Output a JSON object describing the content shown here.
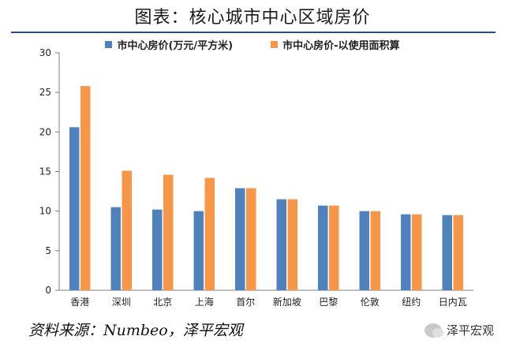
{
  "title": "图表：核心城市中心区域房价",
  "source": "资料来源：Numbeo，泽平宏观",
  "watermark": "泽平宏观",
  "colors": {
    "series1": "#4f81bd",
    "series2": "#f79646",
    "title_rule": "#2b4a7e",
    "axis": "#7f7f7f"
  },
  "chart_data": {
    "type": "bar",
    "categories": [
      "香港",
      "深圳",
      "北京",
      "上海",
      "首尔",
      "新加坡",
      "巴黎",
      "伦敦",
      "纽约",
      "日内瓦"
    ],
    "series": [
      {
        "name": "市中心房价(万元/平方米)",
        "values": [
          20.6,
          10.5,
          10.2,
          10.0,
          12.9,
          11.5,
          10.7,
          10.0,
          9.6,
          9.5
        ]
      },
      {
        "name": "市中心房价-以使用面积算",
        "values": [
          25.8,
          15.1,
          14.6,
          14.2,
          12.9,
          11.5,
          10.7,
          10.0,
          9.6,
          9.5
        ]
      }
    ],
    "ylim": [
      0,
      30
    ],
    "yticks": [
      0,
      5,
      10,
      15,
      20,
      25,
      30
    ],
    "legend_position": "top",
    "grid": false
  }
}
